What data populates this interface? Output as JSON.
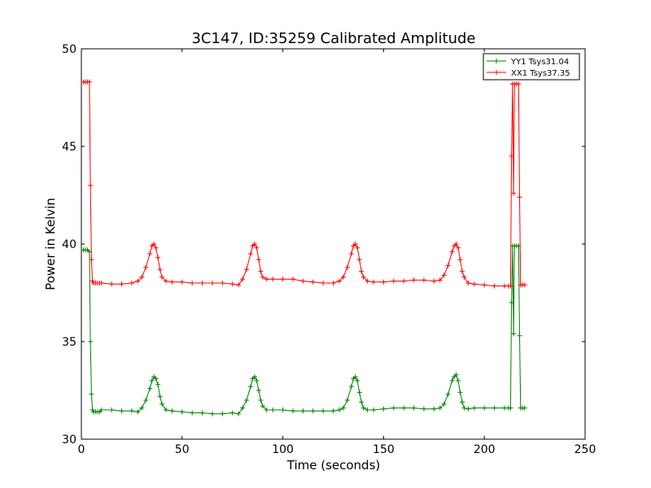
{
  "chart_data": {
    "type": "line",
    "title": "3C147, ID:35259 Calibrated Amplitude",
    "xlabel": "Time (seconds)",
    "ylabel": "Power in Kelvin",
    "xlim": [
      0,
      250
    ],
    "ylim": [
      30,
      50
    ],
    "xticks": [
      0,
      50,
      100,
      150,
      200,
      250
    ],
    "yticks": [
      30,
      35,
      40,
      45,
      50
    ],
    "grid": false,
    "legend_position": "top-right",
    "marker": "+",
    "series": [
      {
        "name": "YY1 Tsys31.04",
        "color": "#008000",
        "x": [
          1,
          2,
          3,
          4,
          4.5,
          5,
          5.5,
          6,
          7,
          8,
          9,
          10,
          15,
          20,
          25,
          28,
          30,
          32,
          34,
          35,
          36,
          37,
          38,
          39,
          40,
          42,
          45,
          50,
          55,
          60,
          65,
          70,
          75,
          78,
          80,
          82,
          84,
          85,
          86,
          87,
          88,
          89,
          90,
          92,
          95,
          100,
          105,
          110,
          115,
          120,
          125,
          128,
          130,
          132,
          134,
          135,
          136,
          137,
          138,
          139,
          140,
          142,
          145,
          150,
          155,
          160,
          165,
          170,
          175,
          178,
          180,
          182,
          184,
          185,
          186,
          187,
          188,
          189,
          190,
          192,
          195,
          200,
          205,
          210,
          212,
          213,
          213.5,
          214,
          214.5,
          215,
          216,
          217,
          217.5,
          218,
          219,
          220
        ],
        "y": [
          39.7,
          39.7,
          39.7,
          39.6,
          35.0,
          32.3,
          31.5,
          31.4,
          31.4,
          31.4,
          31.4,
          31.5,
          31.5,
          31.45,
          31.45,
          31.4,
          31.6,
          32.0,
          32.6,
          33.0,
          33.2,
          33.1,
          32.8,
          32.2,
          31.8,
          31.5,
          31.45,
          31.4,
          31.35,
          31.35,
          31.3,
          31.3,
          31.35,
          31.3,
          31.6,
          32.0,
          32.7,
          33.1,
          33.2,
          33.0,
          32.5,
          32.0,
          31.7,
          31.5,
          31.5,
          31.5,
          31.45,
          31.45,
          31.45,
          31.45,
          31.45,
          31.5,
          31.6,
          32.0,
          32.7,
          33.1,
          33.2,
          33.0,
          32.4,
          31.9,
          31.6,
          31.5,
          31.5,
          31.55,
          31.6,
          31.6,
          31.6,
          31.55,
          31.55,
          31.6,
          31.8,
          32.3,
          33.0,
          33.2,
          33.3,
          33.0,
          32.4,
          31.9,
          31.6,
          31.55,
          31.6,
          31.6,
          31.6,
          31.6,
          31.6,
          31.6,
          37.0,
          39.9,
          35.4,
          39.9,
          39.9,
          39.9,
          35.3,
          31.6,
          31.6,
          31.6
        ]
      },
      {
        "name": "XX1 Tsys37.35",
        "color": "#ff0000",
        "x": [
          1,
          2,
          3,
          4,
          4.5,
          5,
          5.5,
          6,
          7,
          8,
          9,
          10,
          15,
          20,
          25,
          28,
          30,
          32,
          34,
          35,
          36,
          37,
          38,
          39,
          40,
          42,
          45,
          50,
          55,
          60,
          65,
          70,
          75,
          78,
          80,
          82,
          84,
          85,
          86,
          87,
          88,
          89,
          90,
          92,
          95,
          100,
          105,
          110,
          115,
          120,
          125,
          128,
          130,
          132,
          134,
          135,
          136,
          137,
          138,
          139,
          140,
          142,
          145,
          150,
          155,
          160,
          165,
          170,
          175,
          178,
          180,
          182,
          184,
          185,
          186,
          187,
          188,
          189,
          190,
          192,
          195,
          200,
          205,
          210,
          212,
          213,
          213.5,
          214,
          214.5,
          215,
          216,
          217,
          217.5,
          218,
          219,
          220
        ],
        "y": [
          48.3,
          48.3,
          48.3,
          48.3,
          43.0,
          39.2,
          38.1,
          38.0,
          38.0,
          38.0,
          38.0,
          38.0,
          37.95,
          37.95,
          38.0,
          38.1,
          38.3,
          38.8,
          39.5,
          39.9,
          40.0,
          39.8,
          39.3,
          38.7,
          38.3,
          38.1,
          38.05,
          38.05,
          38.0,
          38.0,
          38.0,
          38.0,
          37.95,
          37.9,
          38.2,
          38.7,
          39.5,
          39.9,
          40.0,
          39.8,
          39.2,
          38.6,
          38.3,
          38.2,
          38.2,
          38.2,
          38.2,
          38.1,
          38.05,
          38.0,
          38.0,
          38.1,
          38.3,
          38.8,
          39.5,
          39.9,
          40.0,
          39.8,
          39.2,
          38.6,
          38.3,
          38.1,
          38.05,
          38.05,
          38.1,
          38.1,
          38.15,
          38.15,
          38.1,
          38.15,
          38.4,
          38.9,
          39.6,
          39.9,
          40.0,
          39.8,
          39.2,
          38.6,
          38.3,
          38.0,
          37.95,
          37.9,
          37.85,
          37.85,
          37.85,
          37.85,
          44.5,
          48.2,
          42.6,
          48.2,
          48.2,
          48.2,
          42.4,
          37.9,
          37.9,
          37.9
        ]
      }
    ]
  }
}
